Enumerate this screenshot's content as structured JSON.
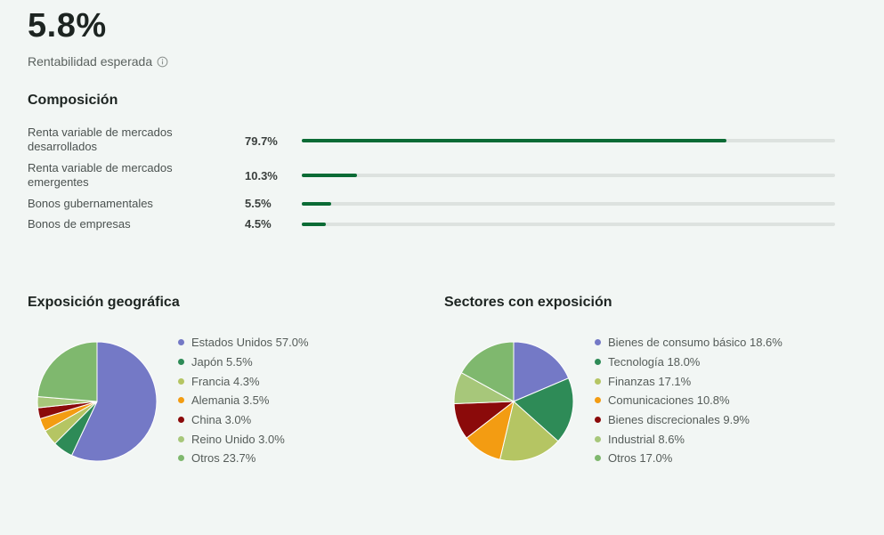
{
  "expected_return": {
    "value": "5.8%",
    "label": "Rentabilidad esperada",
    "icon": "info-icon"
  },
  "composition": {
    "title": "Composición",
    "bar_color": "#0b6b35",
    "items": [
      {
        "label": "Renta variable de mercados desarrollados",
        "value_text": "79.7%",
        "percent": 79.7
      },
      {
        "label": "Renta variable de mercados emergentes",
        "value_text": "10.3%",
        "percent": 10.3
      },
      {
        "label": "Bonos gubernamentales",
        "value_text": "5.5%",
        "percent": 5.5
      },
      {
        "label": "Bonos de empresas",
        "value_text": "4.5%",
        "percent": 4.5
      }
    ]
  },
  "geo": {
    "title": "Exposición geográfica",
    "legend": [
      "Estados Unidos 57.0%",
      "Japón 5.5%",
      "Francia 4.3%",
      "Alemania 3.5%",
      "China 3.0%",
      "Reino Unido 3.0%",
      "Otros 23.7%"
    ]
  },
  "sectors": {
    "title": "Sectores con exposición",
    "legend": [
      "Bienes de consumo básico 18.6%",
      "Tecnología 18.0%",
      "Finanzas 17.1%",
      "Comunicaciones 10.8%",
      "Bienes discrecionales 9.9%",
      "Industrial 8.6%",
      "Otros 17.0%"
    ]
  },
  "chart_data": [
    {
      "type": "pie",
      "title": "Exposición geográfica",
      "categories": [
        "Estados Unidos",
        "Japón",
        "Francia",
        "Alemania",
        "China",
        "Reino Unido",
        "Otros"
      ],
      "values": [
        57.0,
        5.5,
        4.3,
        3.5,
        3.0,
        3.0,
        23.7
      ],
      "colors": [
        "#7479c6",
        "#2e8b57",
        "#b5c563",
        "#f39c12",
        "#8b0a0a",
        "#a7c77a",
        "#7fb86e"
      ],
      "legend": "right"
    },
    {
      "type": "pie",
      "title": "Sectores con exposición",
      "categories": [
        "Bienes de consumo básico",
        "Tecnología",
        "Finanzas",
        "Comunicaciones",
        "Bienes discrecionales",
        "Industrial",
        "Otros"
      ],
      "values": [
        18.6,
        18.0,
        17.1,
        10.8,
        9.9,
        8.6,
        17.0
      ],
      "colors": [
        "#7479c6",
        "#2e8b57",
        "#b5c563",
        "#f39c12",
        "#8b0a0a",
        "#a7c77a",
        "#7fb86e"
      ],
      "legend": "right"
    }
  ]
}
